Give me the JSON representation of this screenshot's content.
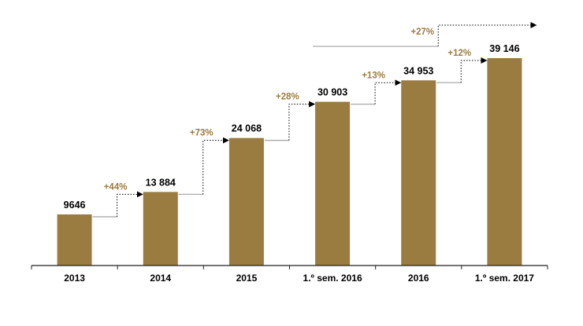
{
  "colors": {
    "bar": "#9A7B40",
    "growth_label": "#9A7B40",
    "axis": "#222222",
    "connector": "#aaaaaa",
    "arrow": "#000000"
  },
  "chart_data": {
    "type": "bar",
    "title": "",
    "xlabel": "",
    "ylabel": "",
    "categories": [
      "2013",
      "2014",
      "2015",
      "1.º sem. 2016",
      "2016",
      "1.º sem. 2017"
    ],
    "values": [
      9646,
      13884,
      24068,
      30903,
      34953,
      39146
    ],
    "value_labels": [
      "9646",
      "13 884",
      "24 068",
      "30 903",
      "34 953",
      "39 146"
    ],
    "growth_labels": [
      "+44%",
      "+73%",
      "+28%",
      "+13%",
      "+12%"
    ],
    "overall_growth_label": "+27%",
    "ylim": [
      0,
      45000
    ],
    "grid": false,
    "legend": "none"
  }
}
